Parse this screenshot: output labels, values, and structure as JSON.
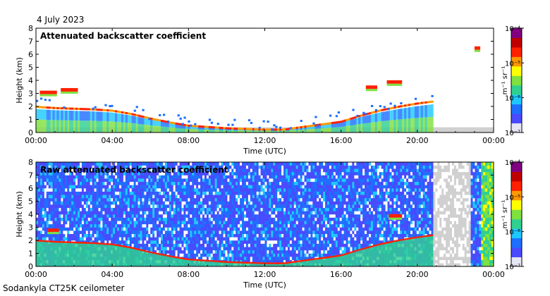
{
  "header": {
    "date": "4 July 2023"
  },
  "footer": {
    "instrument": "Sodankyla CT25K ceilometer"
  },
  "colors": {
    "missing": "#d0d0d0",
    "colormap": [
      "#ffffff",
      "#4a4aff",
      "#1e6fff",
      "#1ec8ff",
      "#30d090",
      "#7fe040",
      "#ffff00",
      "#ff9900",
      "#ff2000",
      "#c00000",
      "#800080"
    ]
  },
  "chart_data": [
    {
      "type": "heatmap",
      "title": "Attenuated backscatter coefficient",
      "xlabel": "Time (UTC)",
      "ylabel": "Height (km)",
      "xlim": [
        0,
        24
      ],
      "ylim": [
        0,
        8
      ],
      "x_ticks": [
        0,
        4,
        8,
        12,
        16,
        20,
        24
      ],
      "x_tick_labels": [
        "00:00",
        "04:00",
        "08:00",
        "12:00",
        "16:00",
        "20:00",
        "00:00"
      ],
      "y_ticks": [
        0,
        1,
        2,
        3,
        4,
        5,
        6,
        7,
        8
      ],
      "y_tick_labels": [
        "0",
        "1",
        "2",
        "3",
        "4",
        "5",
        "6",
        "7",
        "8"
      ],
      "colorbar": {
        "scale": "log",
        "label": "m⁻¹ sr⁻¹",
        "range": [
          1e-07,
          0.0001
        ],
        "ticks": [
          1e-07,
          1e-06,
          1e-05,
          0.0001
        ],
        "tick_labels": [
          "10⁻⁷",
          "10⁻⁶",
          "10⁻⁵",
          "10⁻⁴"
        ]
      },
      "boundary_layer_height_km": [
        [
          0,
          2.0
        ],
        [
          1,
          1.9
        ],
        [
          2,
          1.85
        ],
        [
          3,
          1.8
        ],
        [
          4,
          1.7
        ],
        [
          5,
          1.45
        ],
        [
          6,
          1.1
        ],
        [
          7,
          0.8
        ],
        [
          8,
          0.55
        ],
        [
          9,
          0.45
        ],
        [
          10,
          0.35
        ],
        [
          11,
          0.3
        ],
        [
          12,
          0.25
        ],
        [
          13,
          0.25
        ],
        [
          14,
          0.45
        ],
        [
          15,
          0.65
        ],
        [
          16,
          0.85
        ],
        [
          17,
          1.3
        ],
        [
          18,
          1.7
        ],
        [
          19,
          2.0
        ],
        [
          20,
          2.25
        ],
        [
          20.8,
          2.4
        ]
      ],
      "cloud_layers": [
        {
          "t_start": 0.2,
          "t_end": 1.1,
          "height_km": 3.1
        },
        {
          "t_start": 1.3,
          "t_end": 2.2,
          "height_km": 3.3
        },
        {
          "t_start": 17.3,
          "t_end": 17.9,
          "height_km": 3.5
        },
        {
          "t_start": 18.4,
          "t_end": 19.2,
          "height_km": 3.9
        },
        {
          "t_start": 23.0,
          "t_end": 23.3,
          "height_km": 6.5
        }
      ]
    },
    {
      "type": "heatmap",
      "title": "Raw attenuated backscatter coefficient",
      "xlabel": "Time (UTC)",
      "ylabel": "Height (km)",
      "xlim": [
        0,
        24
      ],
      "ylim": [
        0,
        8
      ],
      "x_ticks": [
        0,
        4,
        8,
        12,
        16,
        20,
        24
      ],
      "x_tick_labels": [
        "00:00",
        "04:00",
        "08:00",
        "12:00",
        "16:00",
        "20:00",
        "00:00"
      ],
      "y_ticks": [
        0,
        1,
        2,
        3,
        4,
        5,
        6,
        7,
        8
      ],
      "y_tick_labels": [
        "0",
        "1",
        "2",
        "3",
        "4",
        "5",
        "6",
        "7",
        "8"
      ],
      "colorbar": {
        "scale": "log",
        "label": "m⁻¹ sr⁻¹",
        "range": [
          1e-07,
          0.0001
        ],
        "ticks": [
          1e-07,
          1e-06,
          1e-05,
          0.0001
        ],
        "tick_labels": [
          "10⁻⁷",
          "10⁻⁶",
          "10⁻⁵",
          "10⁻⁴"
        ]
      },
      "boundary_layer_height_km": [
        [
          0,
          2.0
        ],
        [
          1,
          1.9
        ],
        [
          2,
          1.85
        ],
        [
          3,
          1.8
        ],
        [
          4,
          1.7
        ],
        [
          5,
          1.45
        ],
        [
          6,
          1.1
        ],
        [
          7,
          0.8
        ],
        [
          8,
          0.55
        ],
        [
          9,
          0.45
        ],
        [
          10,
          0.35
        ],
        [
          11,
          0.3
        ],
        [
          12,
          0.25
        ],
        [
          13,
          0.25
        ],
        [
          14,
          0.45
        ],
        [
          15,
          0.65
        ],
        [
          16,
          0.85
        ],
        [
          17,
          1.3
        ],
        [
          18,
          1.7
        ],
        [
          19,
          2.0
        ],
        [
          20,
          2.25
        ],
        [
          20.8,
          2.4
        ]
      ],
      "cloud_layers": [
        {
          "t_start": 0.6,
          "t_end": 1.2,
          "height_km": 2.8
        },
        {
          "t_start": 18.5,
          "t_end": 19.2,
          "height_km": 3.9
        }
      ]
    }
  ]
}
